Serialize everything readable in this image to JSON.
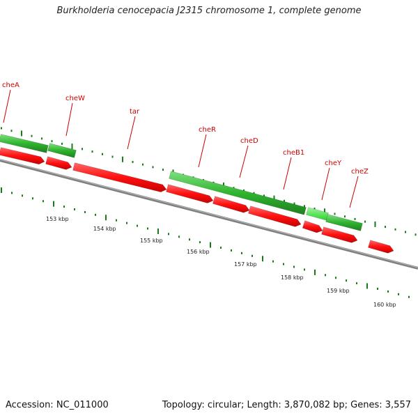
{
  "title": "Burkholderia cenocepacia J2315 chromosome 1, complete genome",
  "accession": "Accession: NC_011000",
  "topology": "Topology: circular; Length: 3,870,082 bp; Genes: 3,557",
  "gene_labels": [
    "cheA",
    "cheW",
    "tar",
    "cheR",
    "cheD",
    "cheB1",
    "cheY",
    "cheZ"
  ],
  "ticks": [
    "153 kbp",
    "154 kbp",
    "155 kbp",
    "156 kbp",
    "157 kbp",
    "158 kbp",
    "159 kbp",
    "160 kbp"
  ],
  "colors": {
    "forward_gene": "#2db82d",
    "forward_gene_highlight": "#33dd33",
    "reverse_gene": "#ff1a1a",
    "backbone": "#808080",
    "reading_frame_ticks": "#1a7a1a",
    "label": "#cc0000"
  }
}
